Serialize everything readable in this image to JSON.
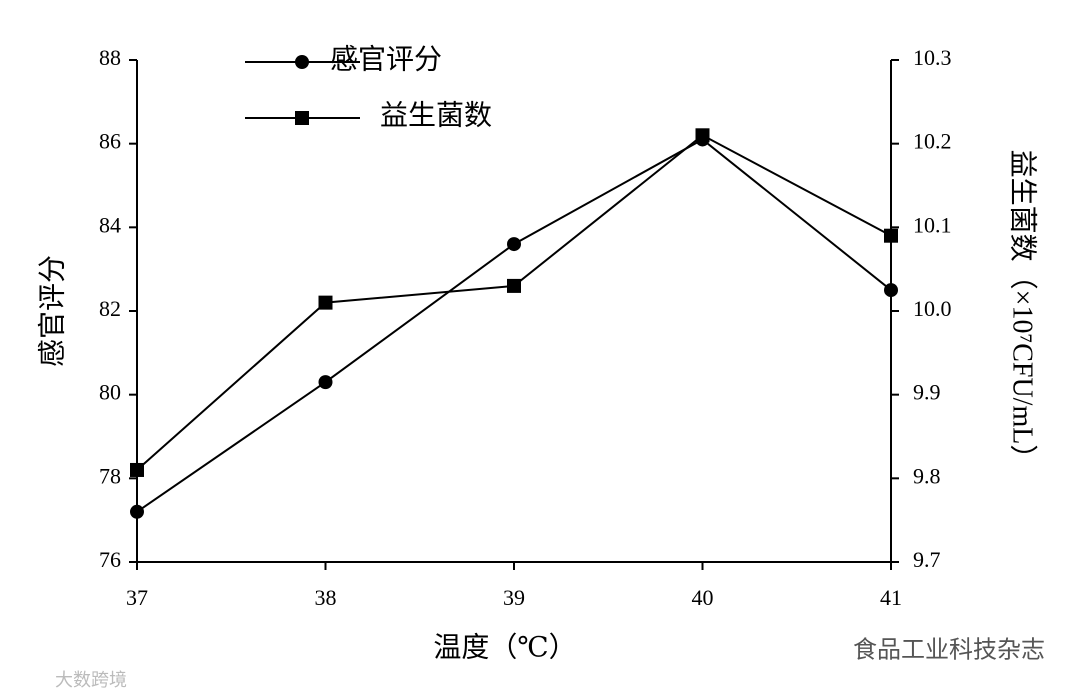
{
  "chart_data": {
    "type": "line",
    "x_label": "温度（℃）",
    "y_label": "感官评分",
    "y2_label": "益生菌数（×10⁷CFU/mL）",
    "x": [
      37,
      38,
      39,
      40,
      41
    ],
    "xlim": [
      37,
      41
    ],
    "xticks": [
      37,
      38,
      39,
      40,
      41
    ],
    "ylim": [
      76,
      88
    ],
    "yticks": [
      76,
      78,
      80,
      82,
      84,
      86,
      88
    ],
    "y2lim": [
      9.7,
      10.3
    ],
    "y2ticks": [
      9.7,
      9.8,
      9.9,
      {
        "value": 10,
        "label": "10.0"
      },
      10.1,
      10.2,
      10.3
    ],
    "legend": "upper left",
    "series": [
      {
        "name": "感官评分",
        "color": "#000000",
        "marker": "circle",
        "values": [
          77.2,
          80.3,
          83.6,
          86.1,
          82.5
        ]
      },
      {
        "name": "益生菌数",
        "color": "#000000",
        "marker": "square",
        "axis": "y2",
        "values": [
          9.81,
          10.01,
          10.03,
          10.21,
          10.09
        ]
      }
    ],
    "watermarks": [
      "食品工业科技杂志",
      "大数跨境"
    ]
  }
}
